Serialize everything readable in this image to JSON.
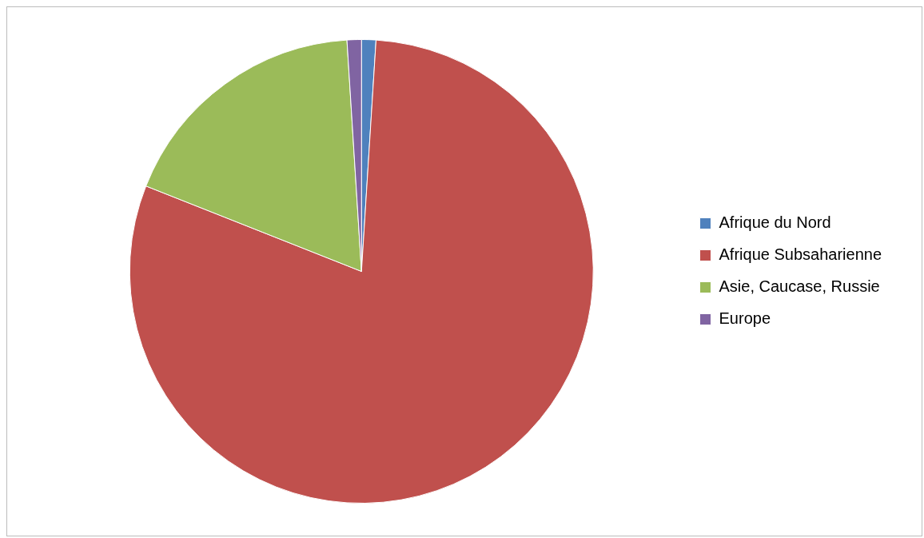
{
  "chart_data": {
    "type": "pie",
    "categories": [
      "Afrique du Nord",
      "Afrique Subsaharienne",
      "Asie, Caucase, Russie",
      "Europe"
    ],
    "values": [
      1,
      80,
      18,
      1
    ],
    "colors": [
      "#4f81bd",
      "#c0504d",
      "#9bbb59",
      "#8064a2"
    ],
    "legend": "right"
  }
}
